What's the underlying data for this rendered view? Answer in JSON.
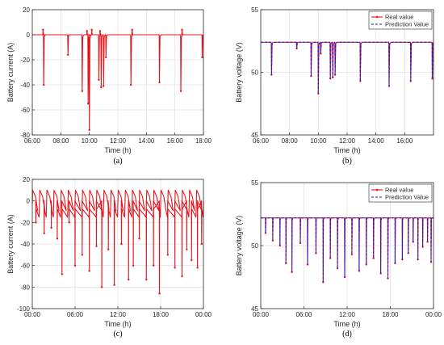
{
  "chart_data": [
    {
      "type": "line",
      "caption": "(a)",
      "xlabel": "Time (h)",
      "ylabel": "Battery current (A)",
      "xlim": [
        "06:00",
        "18:00"
      ],
      "x_ticks": [
        "06:00",
        "08:00",
        "10:00",
        "12:00",
        "14:00",
        "16:00",
        "18:00"
      ],
      "ylim": [
        -80,
        20
      ],
      "y_ticks": [
        "20",
        "0",
        "-20",
        "-40",
        "-60",
        "-80"
      ],
      "grid": true,
      "series": [
        {
          "color": "#e8141c",
          "baseline": 0,
          "peaks": [
            {
              "x": "06:45",
              "y": 4
            },
            {
              "x": "09:50",
              "y": 3
            },
            {
              "x": "10:10",
              "y": 4
            },
            {
              "x": "10:45",
              "y": 3
            },
            {
              "x": "13:00",
              "y": 4
            },
            {
              "x": "16:30",
              "y": 4
            }
          ],
          "dips": [
            {
              "x": "06:48",
              "y": -40
            },
            {
              "x": "08:30",
              "y": -16
            },
            {
              "x": "09:30",
              "y": -45
            },
            {
              "x": "09:55",
              "y": -55
            },
            {
              "x": "10:00",
              "y": -76
            },
            {
              "x": "10:40",
              "y": -36
            },
            {
              "x": "10:50",
              "y": -42
            },
            {
              "x": "11:00",
              "y": -41
            },
            {
              "x": "11:10",
              "y": -18
            },
            {
              "x": "12:55",
              "y": -40
            },
            {
              "x": "14:55",
              "y": -38
            },
            {
              "x": "16:25",
              "y": -45
            },
            {
              "x": "17:55",
              "y": -18
            }
          ]
        }
      ]
    },
    {
      "type": "line",
      "caption": "(b)",
      "xlabel": "Time (h)",
      "ylabel": "Battery voltage (V)",
      "xlim": [
        "06:00",
        "18:00"
      ],
      "x_ticks": [
        "06:00",
        "08:00",
        "10:00",
        "12:00",
        "14:00",
        "16:00"
      ],
      "ylim": [
        45,
        55
      ],
      "y_ticks": [
        "55",
        "50",
        "45"
      ],
      "grid": true,
      "legend_position": "top-right",
      "series": [
        {
          "name": "Real value",
          "color": "#e8141c",
          "baseline": 52.4,
          "dips": [
            {
              "x": "06:45",
              "y": 49.8
            },
            {
              "x": "08:30",
              "y": 51.9
            },
            {
              "x": "09:30",
              "y": 49.7
            },
            {
              "x": "10:00",
              "y": 48.3
            },
            {
              "x": "10:10",
              "y": 51.5
            },
            {
              "x": "10:50",
              "y": 49.5
            },
            {
              "x": "11:00",
              "y": 49.6
            },
            {
              "x": "11:10",
              "y": 49.8
            },
            {
              "x": "12:55",
              "y": 49.3
            },
            {
              "x": "14:55",
              "y": 48.9
            },
            {
              "x": "16:25",
              "y": 49.3
            },
            {
              "x": "17:55",
              "y": 49.5
            }
          ]
        },
        {
          "name": "Prediction Value",
          "color": "#1a1adb",
          "baseline": 52.4,
          "dips": [
            {
              "x": "06:45",
              "y": 49.8
            },
            {
              "x": "08:30",
              "y": 51.9
            },
            {
              "x": "09:30",
              "y": 49.7
            },
            {
              "x": "10:00",
              "y": 48.3
            },
            {
              "x": "10:10",
              "y": 51.5
            },
            {
              "x": "10:50",
              "y": 49.5
            },
            {
              "x": "11:00",
              "y": 49.6
            },
            {
              "x": "11:10",
              "y": 49.8
            },
            {
              "x": "12:55",
              "y": 49.3
            },
            {
              "x": "14:55",
              "y": 48.9
            },
            {
              "x": "16:25",
              "y": 49.3
            },
            {
              "x": "17:55",
              "y": 49.5
            }
          ]
        }
      ]
    },
    {
      "type": "line",
      "caption": "(c)",
      "xlabel": "Time (h)",
      "ylabel": "Battery current (A)",
      "xlim": [
        "00:00",
        "24:00"
      ],
      "x_ticks": [
        "00:00",
        "06:00",
        "12:00",
        "18:00",
        "00:00"
      ],
      "ylim": [
        -100,
        20
      ],
      "y_ticks": [
        "20",
        "0",
        "-20",
        "-40",
        "-60",
        "-80",
        "-100"
      ],
      "grid": true,
      "series": [
        {
          "color": "#e8141c",
          "baseline": 0,
          "periodic_peak": 10,
          "periodic_trough": -15,
          "dips": [
            {
              "x": "00:30",
              "y": -20
            },
            {
              "x": "01:40",
              "y": -30
            },
            {
              "x": "02:40",
              "y": -25
            },
            {
              "x": "03:30",
              "y": -35
            },
            {
              "x": "04:10",
              "y": -68
            },
            {
              "x": "05:10",
              "y": -20
            },
            {
              "x": "06:00",
              "y": -60
            },
            {
              "x": "07:00",
              "y": -50
            },
            {
              "x": "08:00",
              "y": -65
            },
            {
              "x": "09:00",
              "y": -42
            },
            {
              "x": "09:45",
              "y": -80
            },
            {
              "x": "10:40",
              "y": -45
            },
            {
              "x": "11:30",
              "y": -78
            },
            {
              "x": "12:30",
              "y": -40
            },
            {
              "x": "13:30",
              "y": -73
            },
            {
              "x": "14:10",
              "y": -60
            },
            {
              "x": "15:00",
              "y": -35
            },
            {
              "x": "16:00",
              "y": -73
            },
            {
              "x": "17:00",
              "y": -60
            },
            {
              "x": "17:50",
              "y": -86
            },
            {
              "x": "19:00",
              "y": -50
            },
            {
              "x": "20:00",
              "y": -62
            },
            {
              "x": "21:00",
              "y": -70
            },
            {
              "x": "21:40",
              "y": -45
            },
            {
              "x": "22:20",
              "y": -55
            },
            {
              "x": "23:10",
              "y": -62
            },
            {
              "x": "23:45",
              "y": -40
            }
          ]
        }
      ]
    },
    {
      "type": "line",
      "caption": "(d)",
      "xlabel": "Time (h)",
      "ylabel": "Battery voltage (V)",
      "xlim": [
        "00:00",
        "24:00"
      ],
      "x_ticks": [
        "00:00",
        "06:00",
        "12:00",
        "18:00",
        "00:00"
      ],
      "ylim": [
        45,
        55
      ],
      "y_ticks": [
        "55",
        "50",
        "45"
      ],
      "grid": true,
      "legend_position": "top-right",
      "series": [
        {
          "name": "Real value",
          "color": "#e8141c",
          "baseline": 52.2,
          "dips": [
            {
              "x": "00:40",
              "y": 51.0
            },
            {
              "x": "01:40",
              "y": 50.4
            },
            {
              "x": "02:40",
              "y": 50.0
            },
            {
              "x": "03:30",
              "y": 48.6
            },
            {
              "x": "04:20",
              "y": 47.9
            },
            {
              "x": "05:30",
              "y": 50.2
            },
            {
              "x": "06:30",
              "y": 48.5
            },
            {
              "x": "07:40",
              "y": 49.4
            },
            {
              "x": "08:40",
              "y": 47.1
            },
            {
              "x": "09:40",
              "y": 49.0
            },
            {
              "x": "10:40",
              "y": 48.2
            },
            {
              "x": "11:40",
              "y": 47.5
            },
            {
              "x": "12:40",
              "y": 49.3
            },
            {
              "x": "13:40",
              "y": 48.0
            },
            {
              "x": "14:40",
              "y": 48.5
            },
            {
              "x": "15:40",
              "y": 49.0
            },
            {
              "x": "16:40",
              "y": 47.8
            },
            {
              "x": "17:40",
              "y": 47.4
            },
            {
              "x": "18:40",
              "y": 48.6
            },
            {
              "x": "19:40",
              "y": 48.9
            },
            {
              "x": "20:30",
              "y": 49.4
            },
            {
              "x": "21:10",
              "y": 50.3
            },
            {
              "x": "21:50",
              "y": 48.9
            },
            {
              "x": "22:30",
              "y": 49.9
            },
            {
              "x": "23:10",
              "y": 50.3
            },
            {
              "x": "23:40",
              "y": 48.7
            }
          ]
        },
        {
          "name": "Prediction Value",
          "color": "#1a1adb",
          "baseline": 52.2,
          "dips": [
            {
              "x": "00:40",
              "y": 51.0
            },
            {
              "x": "01:40",
              "y": 50.4
            },
            {
              "x": "02:40",
              "y": 50.0
            },
            {
              "x": "03:30",
              "y": 48.6
            },
            {
              "x": "04:20",
              "y": 47.9
            },
            {
              "x": "05:30",
              "y": 50.2
            },
            {
              "x": "06:30",
              "y": 48.5
            },
            {
              "x": "07:40",
              "y": 49.4
            },
            {
              "x": "08:40",
              "y": 47.1
            },
            {
              "x": "09:40",
              "y": 49.0
            },
            {
              "x": "10:40",
              "y": 48.2
            },
            {
              "x": "11:40",
              "y": 47.5
            },
            {
              "x": "12:40",
              "y": 49.3
            },
            {
              "x": "13:40",
              "y": 48.0
            },
            {
              "x": "14:40",
              "y": 48.5
            },
            {
              "x": "15:40",
              "y": 49.0
            },
            {
              "x": "16:40",
              "y": 47.8
            },
            {
              "x": "17:40",
              "y": 47.4
            },
            {
              "x": "18:40",
              "y": 48.6
            },
            {
              "x": "19:40",
              "y": 48.9
            },
            {
              "x": "20:30",
              "y": 49.4
            },
            {
              "x": "21:10",
              "y": 50.3
            },
            {
              "x": "21:50",
              "y": 48.9
            },
            {
              "x": "22:30",
              "y": 49.9
            },
            {
              "x": "23:10",
              "y": 50.3
            },
            {
              "x": "23:40",
              "y": 48.7
            }
          ]
        }
      ]
    }
  ]
}
